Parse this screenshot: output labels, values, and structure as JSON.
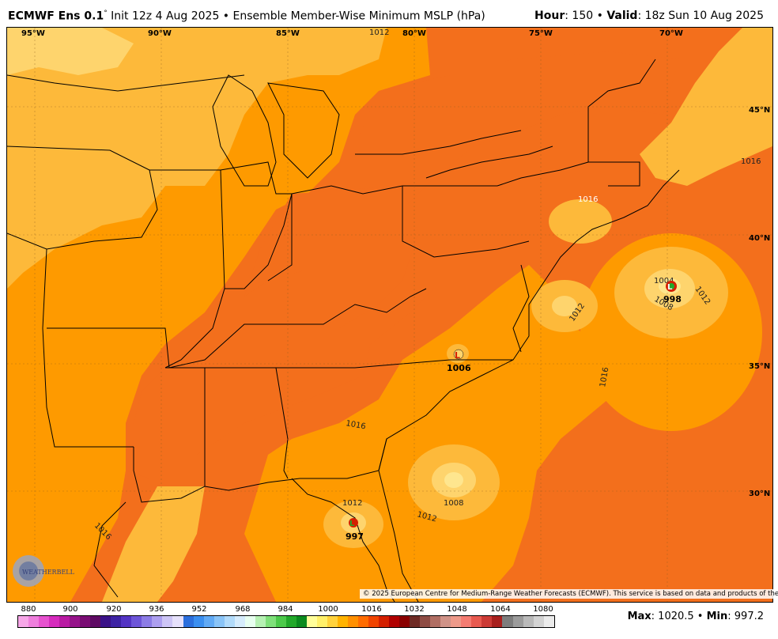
{
  "header": {
    "model": "ECMWF Ens 0.1",
    "degree": "°",
    "init": " Init 12z 4 Aug 2025 • Ensemble Member-Wise Minimum MSLP (hPa)",
    "hour_label": "Hour",
    "hour_value": ": 150 • ",
    "valid_label": "Valid",
    "valid_value": ": 18z Sun 10 Aug 2025"
  },
  "map": {
    "lon_labels": [
      "95°W",
      "90°W",
      "85°W",
      "80°W",
      "75°W",
      "70°W"
    ],
    "lat_labels": [
      "45°N",
      "40°N",
      "35°N",
      "30°N"
    ],
    "contour_labels": [
      "1012",
      "1016",
      "1016",
      "1012",
      "1004",
      "1008",
      "1012",
      "1016",
      "1016",
      "1008",
      "1012",
      "1012",
      "1016"
    ],
    "lows": [
      {
        "symbol": "L",
        "value": "998"
      },
      {
        "symbol": "L",
        "value": "1006"
      },
      {
        "symbol": "L",
        "value": "997"
      }
    ],
    "copyright": "© 2025 European Centre for Medium-Range Weather Forecasts (ECMWF). This service is based on data and products of the ECMWF.",
    "logo_text": "WEATHERBELL",
    "colors": {
      "ocean_high": "#f36f1c",
      "land_mid": "#fe9a00",
      "light": "#fdb93a",
      "pale": "#fed46d",
      "paler": "#fee68f"
    }
  },
  "colorbar": {
    "tick_labels": [
      "880",
      "900",
      "920",
      "936",
      "952",
      "968",
      "984",
      "1000",
      "1016",
      "1032",
      "1048",
      "1064",
      "1080"
    ],
    "colors": [
      "#f7a7e8",
      "#ef7fdd",
      "#e752cf",
      "#d62bbd",
      "#b91ba3",
      "#96138a",
      "#7a0d74",
      "#5e0a63",
      "#3a1288",
      "#3d23a4",
      "#5334c4",
      "#6d55d8",
      "#8c7ce6",
      "#ad9ff0",
      "#cdc5f6",
      "#e6e1fb",
      "#2c6fdd",
      "#3b8ff0",
      "#61aaf5",
      "#8ac4f7",
      "#b2dbfa",
      "#d6ecfc",
      "#e8fff0",
      "#b6f1b3",
      "#7fe07a",
      "#4cc94a",
      "#22a82a",
      "#0b8a1e",
      "#fffe9a",
      "#fff06a",
      "#ffd23c",
      "#ffb300",
      "#ff9000",
      "#ff6c00",
      "#f04400",
      "#d42000",
      "#b00000",
      "#8a0000",
      "#6e2b25",
      "#8e4c44",
      "#b06e63",
      "#d09388",
      "#ee9a8a",
      "#f47c72",
      "#e85a50",
      "#cc3b36",
      "#a8201e",
      "#7d7d7d",
      "#9b9b9b",
      "#b9b9b9",
      "#d3d3d3",
      "#ebebeb"
    ]
  },
  "stats": {
    "max_label": "Max",
    "max_value": ": 1020.5 • ",
    "min_label": "Min",
    "min_value": ": 997.2"
  }
}
